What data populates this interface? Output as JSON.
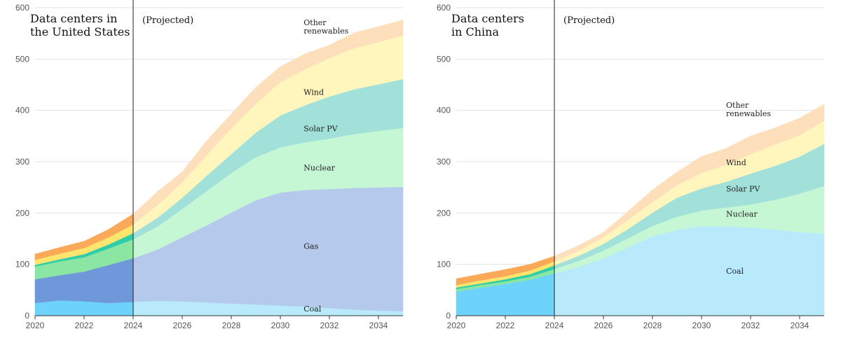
{
  "chart_data": [
    {
      "type": "area",
      "stacked": true,
      "title": "Data centers in the United States",
      "title_lines": [
        "Data centers in",
        "the United States"
      ],
      "annotation": "(Projected)",
      "projection_start": 2024,
      "xlim": [
        2020,
        2035
      ],
      "ylim": [
        0,
        600
      ],
      "x_ticks": [
        2020,
        2022,
        2024,
        2026,
        2028,
        2030,
        2032,
        2034
      ],
      "y_ticks": [
        0,
        100,
        200,
        300,
        400,
        500,
        600
      ],
      "grid": true,
      "x": [
        2020,
        2021,
        2022,
        2023,
        2024,
        2025,
        2026,
        2027,
        2028,
        2029,
        2030,
        2031,
        2032,
        2033,
        2034,
        2035
      ],
      "series": [
        {
          "name": "Coal",
          "values": [
            25,
            30,
            28,
            25,
            27,
            29,
            28,
            26,
            24,
            22,
            20,
            18,
            15,
            12,
            10,
            9
          ]
        },
        {
          "name": "Gas",
          "values": [
            46,
            49,
            58,
            74,
            85,
            100,
            125,
            150,
            177,
            203,
            220,
            227,
            232,
            237,
            240,
            242
          ]
        },
        {
          "name": "Nuclear",
          "values": [
            25,
            27,
            28,
            32,
            37,
            45,
            55,
            67,
            77,
            84,
            88,
            93,
            98,
            105,
            110,
            115
          ]
        },
        {
          "name": "Solar PV",
          "values": [
            3,
            4,
            6,
            8,
            12,
            17,
            22,
            30,
            37,
            48,
            62,
            72,
            82,
            87,
            91,
            95
          ]
        },
        {
          "name": "Wind",
          "values": [
            10,
            11,
            12,
            14,
            17,
            25,
            30,
            40,
            50,
            56,
            65,
            70,
            75,
            80,
            82,
            85
          ]
        },
        {
          "name": "Other renewables",
          "values": [
            11,
            12,
            13,
            15,
            20,
            26,
            20,
            28,
            28,
            32,
            30,
            30,
            25,
            30,
            30,
            30
          ]
        }
      ],
      "colors": [
        "#b9eafb",
        "#b5c9ec",
        "#c6f7d4",
        "#a1e1da",
        "#fff6bd",
        "#fde0bb"
      ],
      "hist_colors": [
        "#6ed3fb",
        "#6f98db",
        "#8be6a4",
        "#2fcea9",
        "#fde56e",
        "#faa958"
      ],
      "series_labels": [
        {
          "lines": [
            "Coal"
          ],
          "x": 2030.95,
          "y": 8
        },
        {
          "lines": [
            "Gas"
          ],
          "x": 2030.95,
          "y": 130
        },
        {
          "lines": [
            "Nuclear"
          ],
          "x": 2030.95,
          "y": 283
        },
        {
          "lines": [
            "Solar PV"
          ],
          "x": 2030.95,
          "y": 359
        },
        {
          "lines": [
            "Wind"
          ],
          "x": 2030.95,
          "y": 430
        },
        {
          "lines": [
            "Other",
            "renewables"
          ],
          "x": 2030.95,
          "y": 566
        }
      ]
    },
    {
      "type": "area",
      "stacked": true,
      "title": "Data centers in China",
      "title_lines": [
        "Data centers",
        "in China"
      ],
      "annotation": "(Projected)",
      "projection_start": 2024,
      "xlim": [
        2020,
        2035
      ],
      "ylim": [
        0,
        600
      ],
      "x_ticks": [
        2020,
        2022,
        2024,
        2026,
        2028,
        2030,
        2032,
        2034
      ],
      "y_ticks": [
        0,
        100,
        200,
        300,
        400,
        500,
        600
      ],
      "grid": true,
      "x": [
        2020,
        2021,
        2022,
        2023,
        2024,
        2025,
        2026,
        2027,
        2028,
        2029,
        2030,
        2031,
        2032,
        2033,
        2034,
        2035
      ],
      "series": [
        {
          "name": "Coal",
          "values": [
            47,
            55,
            62,
            70,
            83,
            95,
            112,
            133,
            155,
            167,
            175,
            174,
            172,
            168,
            163,
            160
          ]
        },
        {
          "name": "Nuclear",
          "values": [
            5,
            5,
            5,
            6,
            8,
            12,
            15,
            18,
            20,
            26,
            30,
            37,
            45,
            58,
            75,
            93
          ]
        },
        {
          "name": "Solar PV",
          "values": [
            3,
            3,
            4,
            5,
            7,
            10,
            13,
            18,
            26,
            37,
            43,
            50,
            60,
            66,
            72,
            82
          ]
        },
        {
          "name": "Wind",
          "values": [
            5,
            6,
            6,
            7,
            8,
            10,
            13,
            18,
            20,
            25,
            30,
            33,
            38,
            42,
            42,
            45
          ]
        },
        {
          "name": "Other renewables",
          "values": [
            12,
            12,
            13,
            12,
            10,
            10,
            9,
            16,
            24,
            25,
            32,
            32,
            35,
            32,
            33,
            32
          ]
        }
      ],
      "colors": [
        "#b9eafb",
        "#c6f7d4",
        "#a1e1da",
        "#fff6bd",
        "#fde0bb"
      ],
      "hist_colors": [
        "#6ed3fb",
        "#8be6a4",
        "#2fcea9",
        "#fde56e",
        "#faa958"
      ],
      "series_labels": [
        {
          "lines": [
            "Coal"
          ],
          "x": 2031,
          "y": 82
        },
        {
          "lines": [
            "Nuclear"
          ],
          "x": 2031,
          "y": 193
        },
        {
          "lines": [
            "Solar PV"
          ],
          "x": 2031,
          "y": 242
        },
        {
          "lines": [
            "Wind"
          ],
          "x": 2031,
          "y": 293
        },
        {
          "lines": [
            "Other",
            "renewables"
          ],
          "x": 2031,
          "y": 405
        }
      ]
    }
  ]
}
